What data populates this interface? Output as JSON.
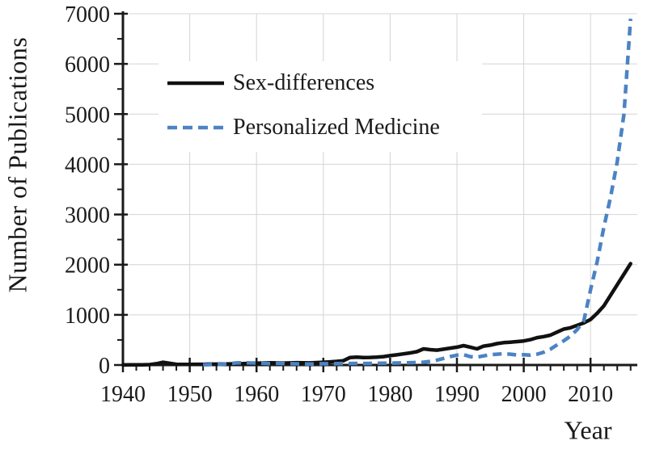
{
  "figure": {
    "background": "#ffffff",
    "text_color": "#1a1a1a"
  },
  "chart_data": {
    "type": "line",
    "title": "",
    "xlabel": "Year",
    "ylabel": "Number of Publications",
    "xlim": [
      1940,
      2017
    ],
    "ylim": [
      0,
      7000
    ],
    "grid": {
      "horizontal": true,
      "vertical": true,
      "color": "#d4d4d4"
    },
    "axis_color": "#1a1a1a",
    "x_major_ticks": [
      1940,
      1950,
      1960,
      1970,
      1980,
      1990,
      2000,
      2010
    ],
    "x_tick_labels": [
      "1940",
      "1950",
      "1960",
      "1970",
      "1980",
      "1990",
      "2000",
      "2010"
    ],
    "x_minor_ticks": [
      1942,
      1944,
      1946,
      1948,
      1952,
      1954,
      1956,
      1958,
      1962,
      1964,
      1966,
      1968,
      1972,
      1974,
      1976,
      1978,
      1982,
      1984,
      1986,
      1988,
      1992,
      1994,
      1996,
      1998,
      2002,
      2004,
      2006,
      2008,
      2012,
      2014,
      2016
    ],
    "y_major_ticks": [
      0,
      1000,
      2000,
      3000,
      4000,
      5000,
      6000,
      7000
    ],
    "y_tick_labels": [
      "0",
      "1000",
      "2000",
      "3000",
      "4000",
      "5000",
      "6000",
      "7000"
    ],
    "y_minor_ticks": [
      500,
      1500,
      2500,
      3500,
      4500,
      5500,
      6500
    ],
    "legend": {
      "position": "upper-left-inside"
    },
    "series": [
      {
        "name": "Sex-differences",
        "color": "#111111",
        "style": "solid",
        "width": 4.5,
        "x": [
          1940,
          1941,
          1942,
          1943,
          1944,
          1945,
          1946,
          1947,
          1948,
          1949,
          1950,
          1951,
          1952,
          1953,
          1954,
          1955,
          1956,
          1957,
          1958,
          1959,
          1960,
          1961,
          1962,
          1963,
          1964,
          1965,
          1966,
          1967,
          1968,
          1969,
          1970,
          1971,
          1972,
          1973,
          1974,
          1975,
          1976,
          1977,
          1978,
          1979,
          1980,
          1981,
          1982,
          1983,
          1984,
          1985,
          1986,
          1987,
          1988,
          1989,
          1990,
          1991,
          1992,
          1993,
          1994,
          1995,
          1996,
          1997,
          1998,
          1999,
          2000,
          2001,
          2002,
          2003,
          2004,
          2005,
          2006,
          2007,
          2008,
          2009,
          2010,
          2011,
          2012,
          2013,
          2014,
          2015,
          2016
        ],
        "values": [
          2,
          3,
          3,
          4,
          8,
          25,
          55,
          35,
          15,
          12,
          13,
          14,
          15,
          17,
          18,
          20,
          22,
          25,
          28,
          32,
          36,
          40,
          44,
          42,
          38,
          42,
          46,
          45,
          42,
          48,
          55,
          62,
          72,
          85,
          150,
          156,
          150,
          152,
          158,
          168,
          186,
          202,
          222,
          242,
          266,
          322,
          306,
          296,
          316,
          336,
          356,
          386,
          356,
          322,
          376,
          396,
          426,
          446,
          456,
          466,
          480,
          506,
          546,
          566,
          596,
          656,
          716,
          742,
          792,
          838,
          908,
          1032,
          1180,
          1390,
          1600,
          1810,
          2020
        ]
      },
      {
        "name": "Personalized Medicine",
        "color": "#4c83c3",
        "style": "dashed",
        "dash": [
          11,
          7
        ],
        "width": 4.5,
        "x": [
          1952,
          1953,
          1954,
          1955,
          1956,
          1957,
          1958,
          1959,
          1960,
          1961,
          1962,
          1963,
          1964,
          1965,
          1966,
          1967,
          1968,
          1969,
          1970,
          1971,
          1972,
          1973,
          1974,
          1975,
          1976,
          1977,
          1978,
          1979,
          1980,
          1981,
          1982,
          1983,
          1984,
          1985,
          1986,
          1987,
          1988,
          1989,
          1990,
          1991,
          1992,
          1993,
          1994,
          1995,
          1996,
          1997,
          1998,
          1999,
          2000,
          2001,
          2002,
          2003,
          2004,
          2005,
          2006,
          2007,
          2008,
          2009,
          2010,
          2011,
          2012,
          2013,
          2014,
          2015,
          2016
        ],
        "values": [
          4,
          8,
          12,
          16,
          28,
          42,
          46,
          42,
          40,
          34,
          30,
          34,
          30,
          28,
          24,
          22,
          20,
          22,
          25,
          26,
          28,
          30,
          30,
          32,
          30,
          32,
          34,
          36,
          38,
          40,
          42,
          46,
          50,
          56,
          72,
          96,
          132,
          168,
          196,
          206,
          168,
          156,
          182,
          206,
          216,
          226,
          216,
          200,
          206,
          196,
          216,
          256,
          316,
          402,
          482,
          576,
          706,
          880,
          1500,
          2060,
          2750,
          3350,
          4050,
          5000,
          6900
        ]
      }
    ]
  }
}
